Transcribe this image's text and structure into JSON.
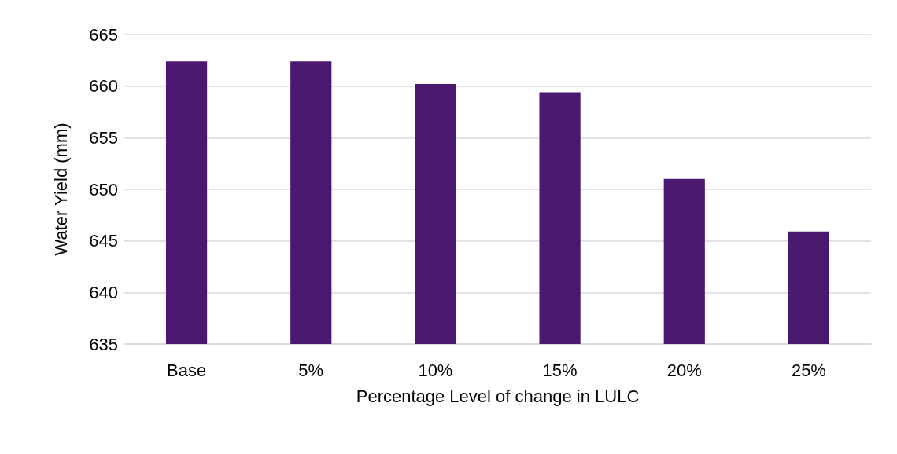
{
  "chart_data": {
    "type": "bar",
    "xlabel": "Percentage Level of change in LULC",
    "ylabel": "Water Yield (mm)",
    "categories": [
      "Base",
      "5%",
      "10%",
      "15%",
      "20%",
      "25%"
    ],
    "values": [
      662.4,
      662.4,
      660.2,
      659.4,
      651.0,
      645.9
    ],
    "color": "#4b1870",
    "ylim": [
      635,
      665
    ],
    "yticks": [
      635,
      640,
      645,
      650,
      655,
      660,
      665
    ],
    "grid": "y"
  }
}
